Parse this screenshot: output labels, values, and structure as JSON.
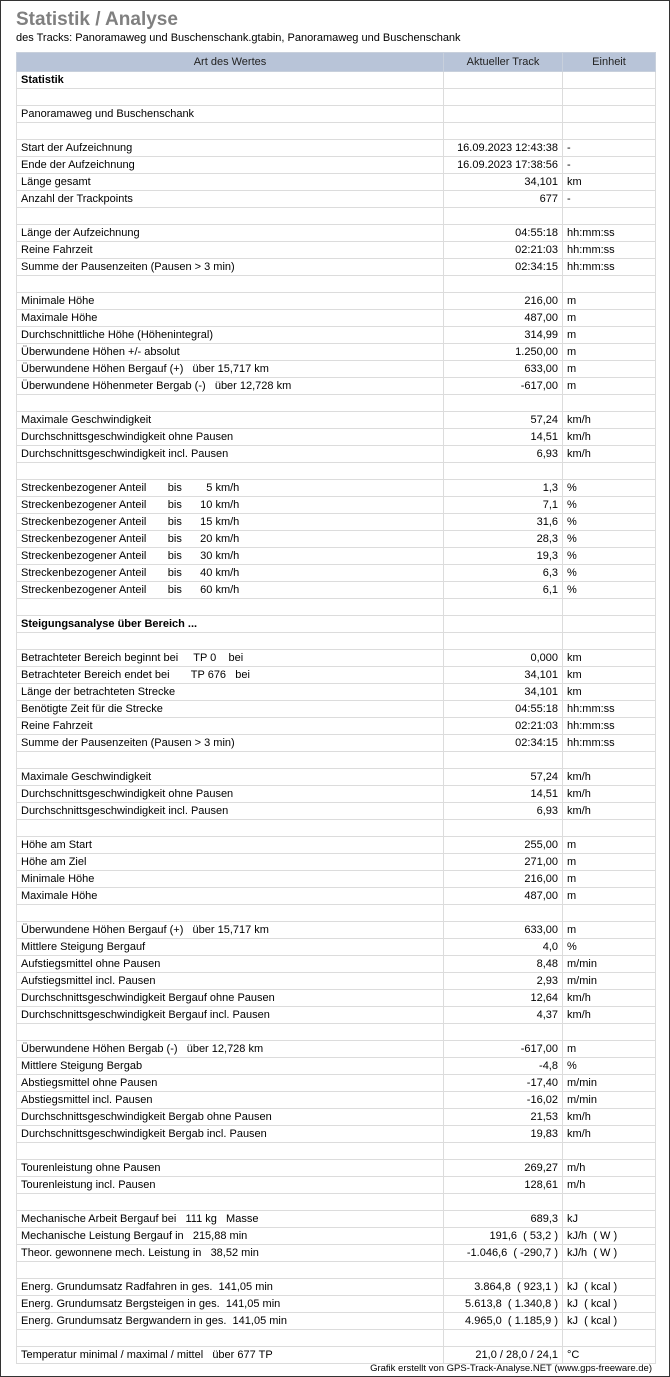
{
  "title": "Statistik / Analyse",
  "subtitle": "des Tracks: Panoramaweg und Buschenschank.gtabin, Panoramaweg und Buschenschank",
  "columns": [
    "Art des Wertes",
    "Aktueller Track",
    "Einheit"
  ],
  "rows": [
    {
      "label": "Statistik",
      "value": "",
      "unit": "",
      "bold": true
    },
    {
      "label": "",
      "value": "",
      "unit": ""
    },
    {
      "label": "Panoramaweg und Buschenschank",
      "value": "",
      "unit": ""
    },
    {
      "label": "",
      "value": "",
      "unit": ""
    },
    {
      "label": "Start der Aufzeichnung",
      "value": "16.09.2023 12:43:38",
      "unit": "-"
    },
    {
      "label": "Ende der Aufzeichnung",
      "value": "16.09.2023 17:38:56",
      "unit": "-"
    },
    {
      "label": "Länge gesamt",
      "value": "34,101",
      "unit": "km"
    },
    {
      "label": "Anzahl der Trackpoints",
      "value": "677",
      "unit": "-"
    },
    {
      "label": "",
      "value": "",
      "unit": ""
    },
    {
      "label": "Länge der Aufzeichnung",
      "value": "04:55:18",
      "unit": "hh:mm:ss"
    },
    {
      "label": "Reine Fahrzeit",
      "value": "02:21:03",
      "unit": "hh:mm:ss"
    },
    {
      "label": "Summe der Pausenzeiten (Pausen > 3 min)",
      "value": "02:34:15",
      "unit": "hh:mm:ss"
    },
    {
      "label": "",
      "value": "",
      "unit": ""
    },
    {
      "label": "Minimale Höhe",
      "value": "216,00",
      "unit": "m"
    },
    {
      "label": "Maximale Höhe",
      "value": "487,00",
      "unit": "m"
    },
    {
      "label": "Durchschnittliche Höhe (Höhenintegral)",
      "value": "314,99",
      "unit": "m"
    },
    {
      "label": "Überwundene Höhen +/- absolut",
      "value": "1.250,00",
      "unit": "m"
    },
    {
      "label": "Überwundene Höhen Bergauf (+)   über 15,717 km",
      "value": "633,00",
      "unit": "m"
    },
    {
      "label": "Überwundene Höhenmeter Bergab (-)   über 12,728 km",
      "value": "-617,00",
      "unit": "m"
    },
    {
      "label": "",
      "value": "",
      "unit": ""
    },
    {
      "label": "Maximale Geschwindigkeit",
      "value": "57,24",
      "unit": "km/h"
    },
    {
      "label": "Durchschnittsgeschwindigkeit ohne Pausen",
      "value": "14,51",
      "unit": "km/h"
    },
    {
      "label": "Durchschnittsgeschwindigkeit incl. Pausen",
      "value": "6,93",
      "unit": "km/h"
    },
    {
      "label": "",
      "value": "",
      "unit": ""
    },
    {
      "label": "Streckenbezogener Anteil       bis        5 km/h",
      "value": "1,3",
      "unit": "%"
    },
    {
      "label": "Streckenbezogener Anteil       bis      10 km/h",
      "value": "7,1",
      "unit": "%"
    },
    {
      "label": "Streckenbezogener Anteil       bis      15 km/h",
      "value": "31,6",
      "unit": "%"
    },
    {
      "label": "Streckenbezogener Anteil       bis      20 km/h",
      "value": "28,3",
      "unit": "%"
    },
    {
      "label": "Streckenbezogener Anteil       bis      30 km/h",
      "value": "19,3",
      "unit": "%"
    },
    {
      "label": "Streckenbezogener Anteil       bis      40 km/h",
      "value": "6,3",
      "unit": "%"
    },
    {
      "label": "Streckenbezogener Anteil       bis      60 km/h",
      "value": "6,1",
      "unit": "%"
    },
    {
      "label": "",
      "value": "",
      "unit": ""
    },
    {
      "label": "Steigungsanalyse über Bereich ...",
      "value": "",
      "unit": "",
      "bold": true
    },
    {
      "label": "",
      "value": "",
      "unit": ""
    },
    {
      "label": "Betrachteter Bereich beginnt bei     TP 0    bei",
      "value": "0,000",
      "unit": "km"
    },
    {
      "label": "Betrachteter Bereich endet bei       TP 676   bei",
      "value": "34,101",
      "unit": "km"
    },
    {
      "label": "Länge der betrachteten Strecke",
      "value": "34,101",
      "unit": "km"
    },
    {
      "label": "Benötigte Zeit für die Strecke",
      "value": "04:55:18",
      "unit": "hh:mm:ss"
    },
    {
      "label": "Reine Fahrzeit",
      "value": "02:21:03",
      "unit": "hh:mm:ss"
    },
    {
      "label": "Summe der Pausenzeiten (Pausen > 3 min)",
      "value": "02:34:15",
      "unit": "hh:mm:ss"
    },
    {
      "label": "",
      "value": "",
      "unit": ""
    },
    {
      "label": "Maximale Geschwindigkeit",
      "value": "57,24",
      "unit": "km/h"
    },
    {
      "label": "Durchschnittsgeschwindigkeit ohne Pausen",
      "value": "14,51",
      "unit": "km/h"
    },
    {
      "label": "Durchschnittsgeschwindigkeit incl. Pausen",
      "value": "6,93",
      "unit": "km/h"
    },
    {
      "label": "",
      "value": "",
      "unit": ""
    },
    {
      "label": "Höhe am Start",
      "value": "255,00",
      "unit": "m"
    },
    {
      "label": "Höhe am Ziel",
      "value": "271,00",
      "unit": "m"
    },
    {
      "label": "Minimale Höhe",
      "value": "216,00",
      "unit": "m"
    },
    {
      "label": "Maximale Höhe",
      "value": "487,00",
      "unit": "m"
    },
    {
      "label": "",
      "value": "",
      "unit": ""
    },
    {
      "label": "Überwundene Höhen Bergauf (+)   über 15,717 km",
      "value": "633,00",
      "unit": "m"
    },
    {
      "label": "Mittlere Steigung Bergauf",
      "value": "4,0",
      "unit": "%"
    },
    {
      "label": "Aufstiegsmittel ohne Pausen",
      "value": "8,48",
      "unit": "m/min"
    },
    {
      "label": "Aufstiegsmittel incl. Pausen",
      "value": "2,93",
      "unit": "m/min"
    },
    {
      "label": "Durchschnittsgeschwindigkeit Bergauf ohne Pausen",
      "value": "12,64",
      "unit": "km/h"
    },
    {
      "label": "Durchschnittsgeschwindigkeit Bergauf incl. Pausen",
      "value": "4,37",
      "unit": "km/h"
    },
    {
      "label": "",
      "value": "",
      "unit": ""
    },
    {
      "label": "Überwundene Höhen Bergab (-)   über 12,728 km",
      "value": "-617,00",
      "unit": "m"
    },
    {
      "label": "Mittlere Steigung Bergab",
      "value": "-4,8",
      "unit": "%"
    },
    {
      "label": "Abstiegsmittel ohne Pausen",
      "value": "-17,40",
      "unit": "m/min"
    },
    {
      "label": "Abstiegsmittel incl. Pausen",
      "value": "-16,02",
      "unit": "m/min"
    },
    {
      "label": "Durchschnittsgeschwindigkeit Bergab ohne Pausen",
      "value": "21,53",
      "unit": "km/h"
    },
    {
      "label": "Durchschnittsgeschwindigkeit Bergab incl. Pausen",
      "value": "19,83",
      "unit": "km/h"
    },
    {
      "label": "",
      "value": "",
      "unit": ""
    },
    {
      "label": "Tourenleistung ohne Pausen",
      "value": "269,27",
      "unit": "m/h"
    },
    {
      "label": "Tourenleistung incl. Pausen",
      "value": "128,61",
      "unit": "m/h"
    },
    {
      "label": "",
      "value": "",
      "unit": ""
    },
    {
      "label": "Mechanische Arbeit Bergauf bei   111 kg   Masse",
      "value": "689,3",
      "unit": "kJ"
    },
    {
      "label": "Mechanische Leistung Bergauf in   215,88 min",
      "value": "191,6  ( 53,2 )",
      "unit": "kJ/h  ( W )"
    },
    {
      "label": "Theor. gewonnene mech. Leistung in   38,52 min",
      "value": "-1.046,6  ( -290,7 )",
      "unit": "kJ/h  ( W )"
    },
    {
      "label": "",
      "value": "",
      "unit": ""
    },
    {
      "label": "Energ. Grundumsatz Radfahren in ges.  141,05 min",
      "value": "3.864,8  ( 923,1 )",
      "unit": "kJ  ( kcal )"
    },
    {
      "label": "Energ. Grundumsatz Bergsteigen in ges.  141,05 min",
      "value": "5.613,8  ( 1.340,8 )",
      "unit": "kJ  ( kcal )"
    },
    {
      "label": "Energ. Grundumsatz Bergwandern in ges.  141,05 min",
      "value": "4.965,0  ( 1.185,9 )",
      "unit": "kJ  ( kcal )"
    },
    {
      "label": "",
      "value": "",
      "unit": ""
    },
    {
      "label": "Temperatur minimal / maximal / mittel   über 677 TP",
      "value": "21,0 / 28,0 / 24,1",
      "unit": "°C"
    }
  ],
  "footer": "Grafik erstellt von GPS-Track-Analyse.NET (www.gps-freeware.de)",
  "colors": {
    "title": "#808080",
    "header_bg": "#b8c4d8",
    "grid": "#dcdcdc"
  }
}
